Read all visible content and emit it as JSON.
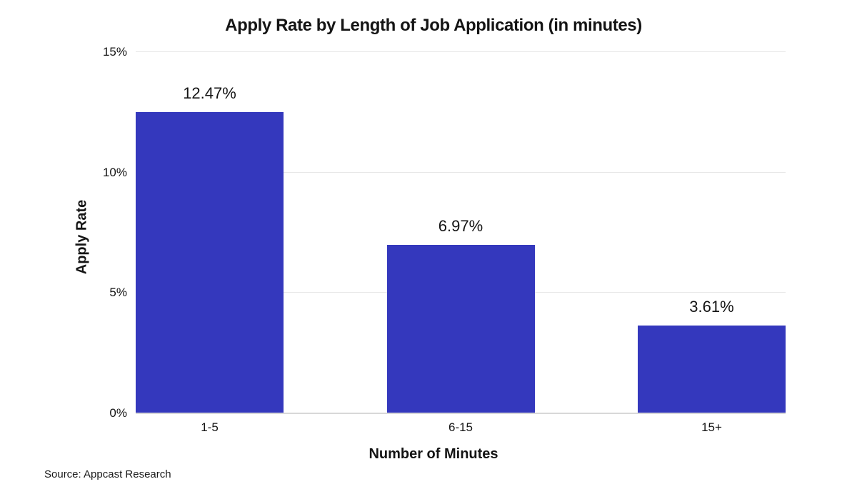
{
  "chart_data": {
    "type": "bar",
    "title": "Apply Rate by Length of Job Application (in minutes)",
    "xlabel": "Number of Minutes",
    "ylabel": "Apply Rate",
    "categories": [
      "1-5",
      "6-15",
      "15+"
    ],
    "values": [
      12.47,
      6.97,
      3.61
    ],
    "value_labels": [
      "12.47%",
      "6.97%",
      "3.61%"
    ],
    "ylim": [
      0,
      15
    ],
    "yticks": [
      {
        "value": 0,
        "label": "0%"
      },
      {
        "value": 5,
        "label": "5%"
      },
      {
        "value": 10,
        "label": "10%"
      },
      {
        "value": 15,
        "label": "15%"
      }
    ],
    "grid": "horizontal",
    "legend": "none",
    "bar_color": "#3438bd",
    "gridline_color": "#e7e7e7",
    "baseline_color": "#d8d8d8",
    "background": "#ffffff",
    "text_color": "#141414",
    "source": "Source: Appcast Research"
  }
}
